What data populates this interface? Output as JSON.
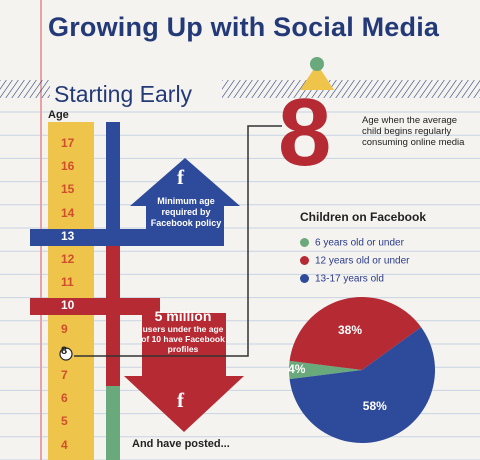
{
  "title": "Growing Up with Social Media",
  "section": "Starting Early",
  "age_axis": {
    "label": "Age",
    "ages": [
      "17",
      "16",
      "15",
      "14",
      "13",
      "12",
      "11",
      "10",
      "9",
      "8",
      "7",
      "6",
      "5",
      "4"
    ]
  },
  "up_arrow": {
    "icon": "f",
    "text": "Minimum age required by Facebook policy"
  },
  "down_arrow": {
    "headline": "5 million",
    "text": "users under the age of 10 have Facebook profiles",
    "icon": "f"
  },
  "posted_text": "And have posted...",
  "age_callout": {
    "number": "8",
    "text": "Age when the average child begins regularly consuming online media"
  },
  "colors": {
    "navy": "#243a78",
    "red": "#b52a33",
    "blue": "#2e4a9a",
    "green": "#69a97b",
    "yellow": "#eec44b"
  },
  "chart_data": {
    "type": "pie",
    "title": "Children on Facebook",
    "slices": [
      {
        "label": "6 years old or under",
        "value": 4,
        "display": "4%",
        "color": "#69a97b"
      },
      {
        "label": "12 years old or under",
        "value": 38,
        "display": "38%",
        "color": "#b52a33"
      },
      {
        "label": "13-17 years old",
        "value": 58,
        "display": "58%",
        "color": "#2e4a9a"
      }
    ]
  }
}
